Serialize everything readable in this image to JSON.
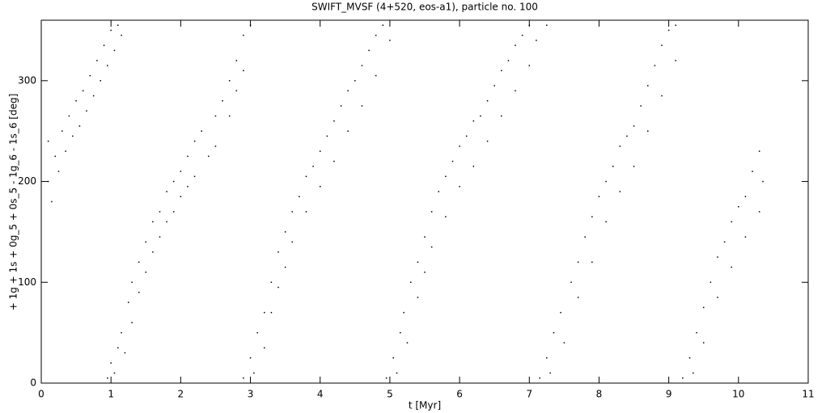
{
  "chart_data": {
    "type": "scatter",
    "title": "SWIFT_MVSF (4+520, eos-a1), particle no. 100",
    "xlabel": "t [Myr]",
    "ylabel": "+ 1g + 1s + 0g_5 + 0s_5 - 1g_6 - 1s_6 [deg]",
    "xlim": [
      0,
      11
    ],
    "ylim": [
      0,
      360
    ],
    "xticks": [
      0,
      1,
      2,
      3,
      4,
      5,
      6,
      7,
      8,
      9,
      10,
      11
    ],
    "yticks": [
      0,
      100,
      200,
      300
    ],
    "series": [
      {
        "color": "#000000",
        "x": [
          0.1,
          0.1,
          0.15,
          0.2,
          0.25,
          0.3,
          0.35,
          0.4,
          0.45,
          0.5,
          0.55,
          0.6,
          0.65,
          0.7,
          0.75,
          0.8,
          0.85,
          0.9,
          0.95,
          1.0,
          1.05,
          1.1,
          1.15,
          0.95,
          1.0,
          1.05,
          1.1,
          1.15,
          1.2,
          1.25,
          1.3,
          1.3,
          1.4,
          1.4,
          1.5,
          1.5,
          1.6,
          1.6,
          1.7,
          1.7,
          1.8,
          1.8,
          1.9,
          1.9,
          2.0,
          2.0,
          2.1,
          2.1,
          2.2,
          2.2,
          2.3,
          2.4,
          2.5,
          2.5,
          2.6,
          2.7,
          2.7,
          2.8,
          2.8,
          2.9,
          2.9,
          3.0,
          2.9,
          3.0,
          3.05,
          3.1,
          3.2,
          3.2,
          3.3,
          3.3,
          3.4,
          3.4,
          3.5,
          3.5,
          3.6,
          3.6,
          3.7,
          3.8,
          3.8,
          3.9,
          4.0,
          4.0,
          4.1,
          4.2,
          4.2,
          4.3,
          4.4,
          4.4,
          4.5,
          4.6,
          4.6,
          4.7,
          4.8,
          4.8,
          4.9,
          5.0,
          4.95,
          5.05,
          5.1,
          5.15,
          5.2,
          5.25,
          5.3,
          5.4,
          5.4,
          5.5,
          5.5,
          5.6,
          5.6,
          5.7,
          5.8,
          5.8,
          5.9,
          6.0,
          6.0,
          6.1,
          6.2,
          6.2,
          6.3,
          6.4,
          6.4,
          6.5,
          6.6,
          6.6,
          6.7,
          6.8,
          6.8,
          6.9,
          7.0,
          7.0,
          7.1,
          7.25,
          7.15,
          7.25,
          7.3,
          7.35,
          7.45,
          7.5,
          7.6,
          7.7,
          7.7,
          7.8,
          7.9,
          7.9,
          8.0,
          8.1,
          8.1,
          8.2,
          8.3,
          8.3,
          8.4,
          8.5,
          8.5,
          8.6,
          8.7,
          8.7,
          8.8,
          8.9,
          8.9,
          9.0,
          9.1,
          9.1,
          9.2,
          9.3,
          9.35,
          9.4,
          9.5,
          9.5,
          9.6,
          9.7,
          9.7,
          9.8,
          9.9,
          9.9,
          10.0,
          10.1,
          10.1,
          10.2,
          10.3,
          10.3,
          10.35
        ],
        "y": [
          200,
          240,
          180,
          225,
          210,
          250,
          230,
          265,
          245,
          280,
          255,
          290,
          270,
          305,
          285,
          320,
          300,
          335,
          315,
          350,
          330,
          355,
          345,
          5,
          20,
          10,
          35,
          50,
          30,
          80,
          100,
          60,
          120,
          90,
          140,
          110,
          160,
          130,
          170,
          145,
          190,
          160,
          200,
          170,
          210,
          185,
          225,
          195,
          240,
          205,
          250,
          225,
          265,
          235,
          280,
          300,
          265,
          320,
          290,
          345,
          310,
          355,
          5,
          25,
          10,
          50,
          70,
          35,
          100,
          70,
          130,
          95,
          150,
          115,
          170,
          140,
          185,
          205,
          170,
          215,
          230,
          195,
          245,
          260,
          220,
          275,
          290,
          250,
          300,
          315,
          275,
          330,
          345,
          305,
          355,
          340,
          5,
          25,
          10,
          50,
          70,
          40,
          100,
          120,
          85,
          145,
          110,
          170,
          135,
          190,
          205,
          165,
          220,
          235,
          195,
          245,
          260,
          215,
          265,
          280,
          240,
          295,
          310,
          265,
          320,
          335,
          290,
          345,
          355,
          315,
          340,
          355,
          5,
          25,
          10,
          50,
          70,
          40,
          100,
          120,
          85,
          145,
          165,
          120,
          185,
          200,
          160,
          215,
          235,
          190,
          245,
          255,
          215,
          275,
          295,
          250,
          315,
          335,
          285,
          350,
          355,
          320,
          5,
          25,
          10,
          50,
          75,
          40,
          100,
          125,
          85,
          140,
          160,
          115,
          175,
          185,
          145,
          210,
          230,
          170,
          200
        ]
      }
    ]
  }
}
